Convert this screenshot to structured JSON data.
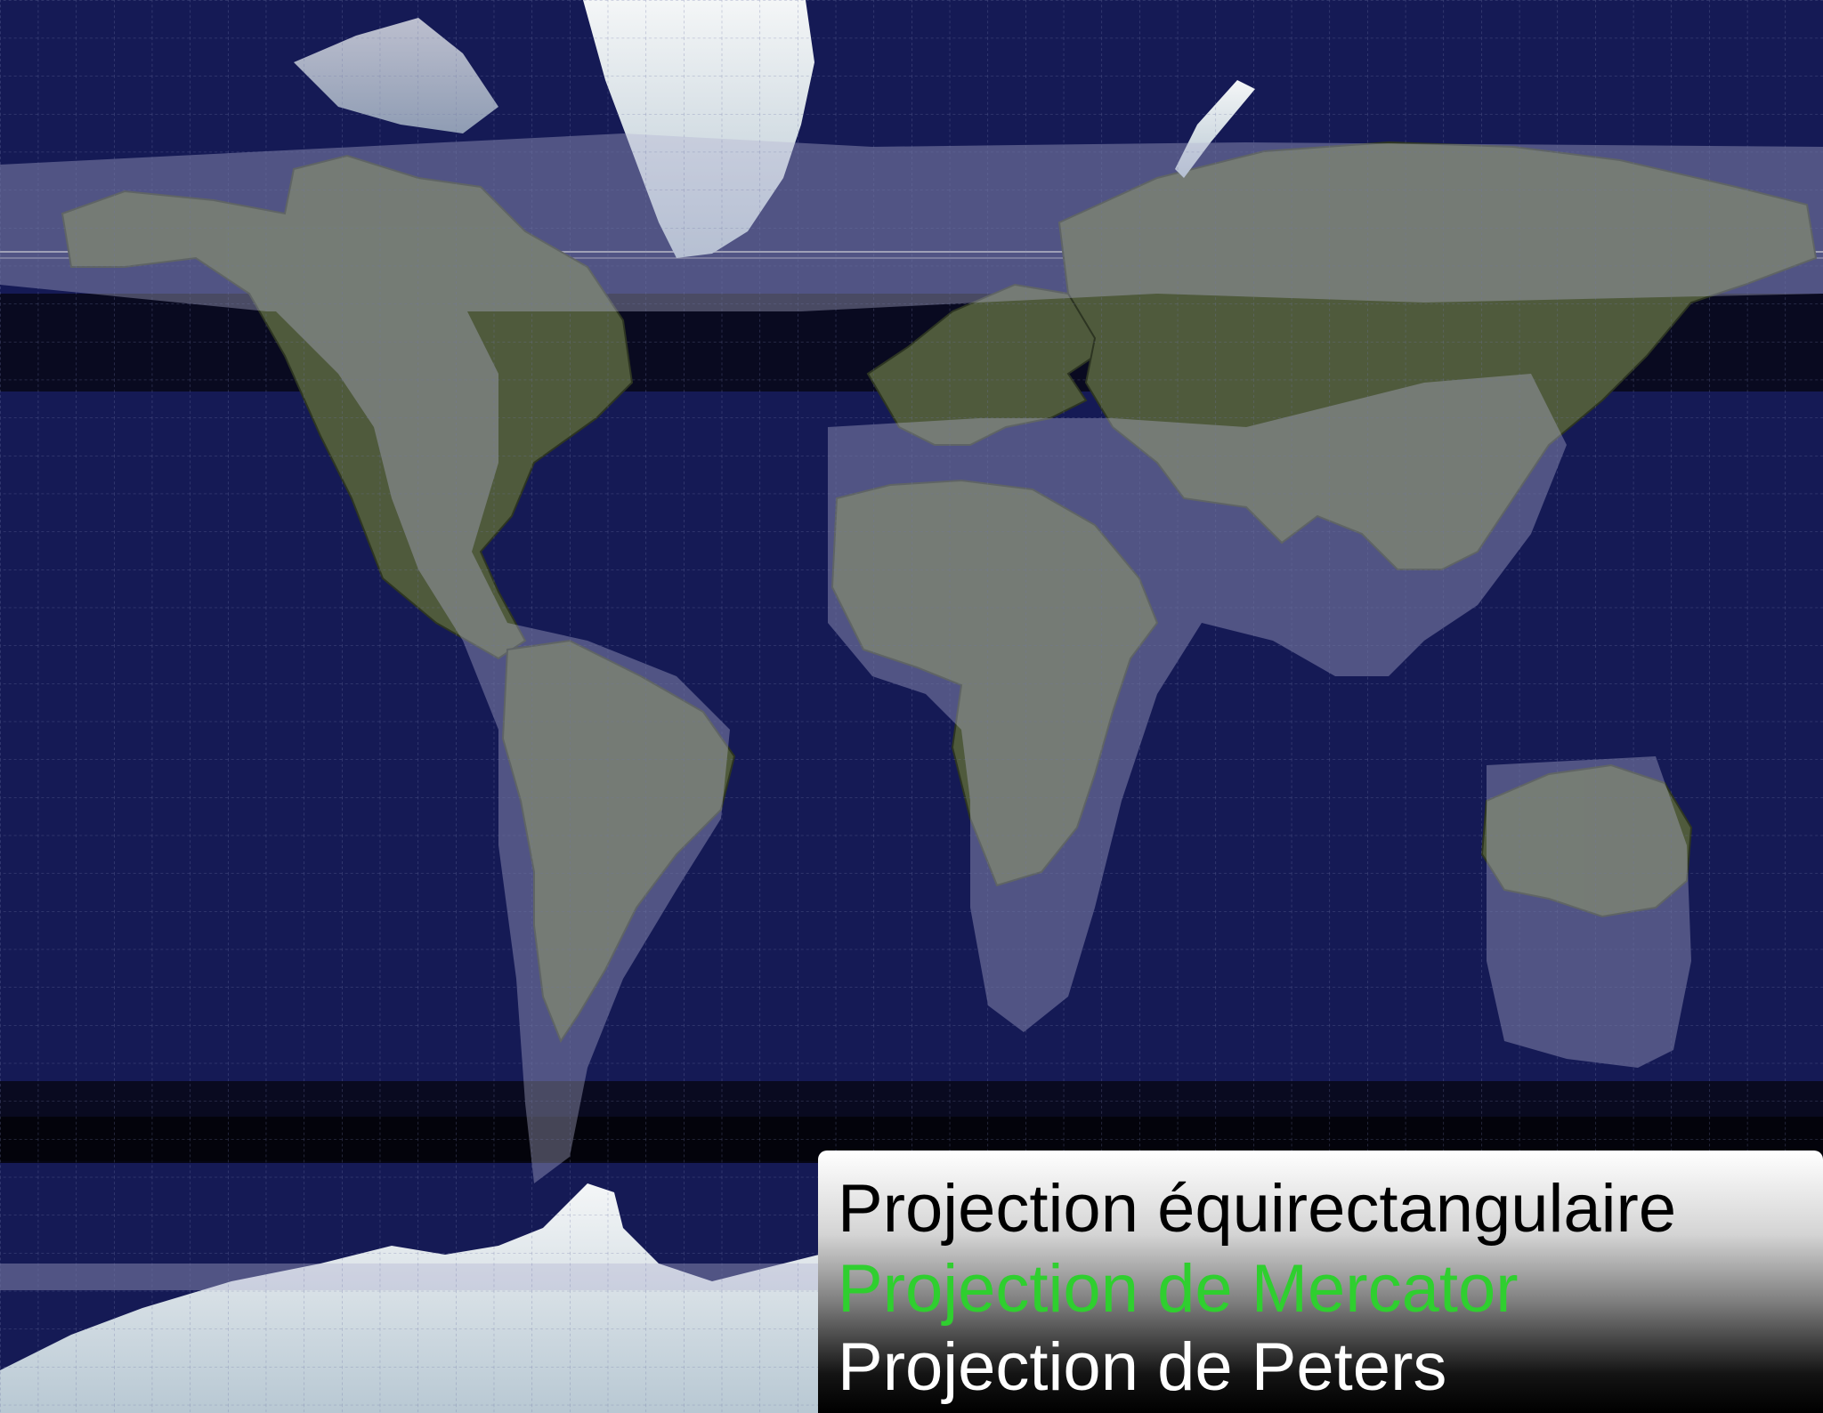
{
  "legend": {
    "items": [
      {
        "label": "Projection équirectangulaire",
        "color": "#000000"
      },
      {
        "label": "Projection de Mercator",
        "color": "#2fcf2f"
      },
      {
        "label": "Projection de Peters",
        "color": "#ffffff"
      }
    ]
  },
  "colors": {
    "ocean": "#151a55",
    "land": "#5a6145",
    "peters_overlay": "#b4b4d2",
    "mercator_band": "#05050f",
    "ice": "#eef2f4",
    "grid": "#6f76a6"
  },
  "icons": [
    "graticule-grid-icon"
  ]
}
